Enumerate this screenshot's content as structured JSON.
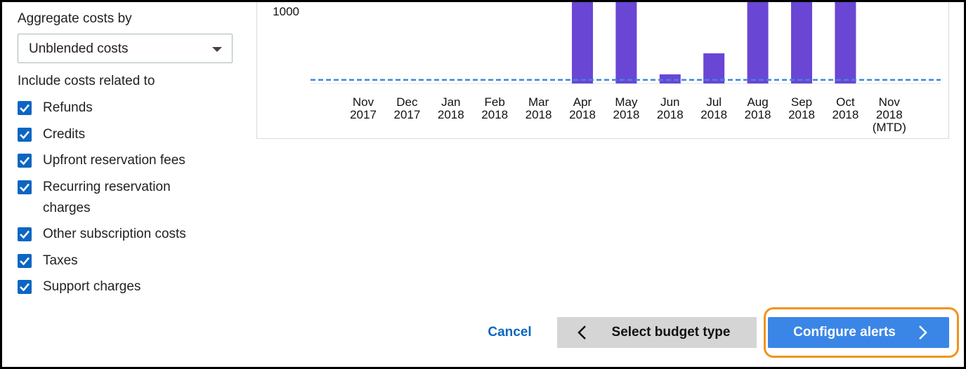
{
  "sidebar": {
    "aggregate_label": "Aggregate costs by",
    "aggregate_value": "Unblended costs",
    "include_label": "Include costs related to",
    "options": [
      "Refunds",
      "Credits",
      "Upfront reservation fees",
      "Recurring reservation charges",
      "Other subscription costs",
      "Taxes",
      "Support charges"
    ]
  },
  "chart_data": {
    "type": "bar",
    "categories": [
      [
        "Nov",
        "2017"
      ],
      [
        "Dec",
        "2017"
      ],
      [
        "Jan",
        "2018"
      ],
      [
        "Feb",
        "2018"
      ],
      [
        "Mar",
        "2018"
      ],
      [
        "Apr",
        "2018"
      ],
      [
        "May",
        "2018"
      ],
      [
        "Jun",
        "2018"
      ],
      [
        "Jul",
        "2018"
      ],
      [
        "Aug",
        "2018"
      ],
      [
        "Sep",
        "2018"
      ],
      [
        "Oct",
        "2018"
      ],
      [
        "Nov",
        "2018",
        "(MTD)"
      ]
    ],
    "values": [
      0,
      0,
      0,
      0,
      0,
      1200,
      1200,
      126,
      417,
      1200,
      1200,
      1200,
      0
    ],
    "color": "#6a46d4",
    "budget": 50,
    "budget_color": "#3b87e0",
    "yticks": [
      1000
    ]
  },
  "buttons": {
    "cancel": "Cancel",
    "previous": "Select budget type",
    "next": "Configure alerts"
  }
}
